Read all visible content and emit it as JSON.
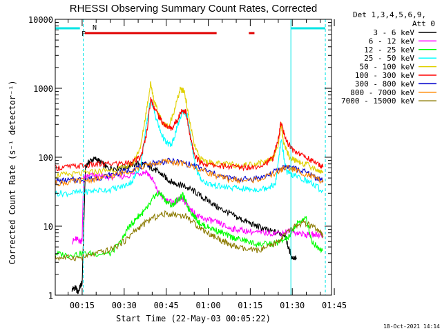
{
  "chart_data": {
    "type": "line",
    "title": "RHESSI Observing Summary Count Rates, Corrected",
    "xlabel": "Start Time (22-May-03 00:05:22)",
    "ylabel": "Corrected Count Rate (s⁻¹ detector⁻¹)",
    "y_scale": "log",
    "ylim": [
      1,
      10000
    ],
    "xlim_minutes": [
      5.4,
      104
    ],
    "x_ticks": [
      "00:15",
      "00:30",
      "00:45",
      "01:00",
      "01:15",
      "01:30",
      "01:45"
    ],
    "y_ticks": [
      "1",
      "10",
      "100",
      "1000",
      "10000"
    ],
    "grid": false,
    "legend_placement": "right",
    "legend_header": [
      "Det 1,3,4,5,6,9,",
      "Att 0"
    ],
    "flag_labels": {
      "night": "N",
      "flare": "F"
    },
    "night_segments": [
      [
        5.4,
        14.2
      ],
      [
        89.5,
        101.8
      ]
    ],
    "night_markers": [
      5.4,
      15.4,
      89.5,
      101.8
    ],
    "flare_segments": [
      [
        16.0,
        63.0
      ],
      [
        74.5,
        76.5
      ]
    ],
    "colors": {
      "background": "#ffffff",
      "axes": "#000000",
      "night": "#00e5e5",
      "flare": "#e00000"
    },
    "series": [
      {
        "name": "3 - 6 keV",
        "color": "#000000",
        "x": [
          11.4,
          12.5,
          13.5,
          14.5,
          15.0,
          16.2,
          18,
          20,
          22,
          24,
          27,
          30,
          33,
          36,
          38,
          40,
          42,
          44,
          46,
          48,
          50,
          52,
          55,
          58,
          61,
          64,
          67,
          70,
          73,
          76,
          79,
          82,
          85,
          87.5,
          88.5,
          90,
          91.5
        ],
        "y": [
          1.2,
          1.3,
          1.1,
          1.4,
          1.5,
          75,
          90,
          95,
          82,
          70,
          70,
          72,
          78,
          82,
          76,
          70,
          62,
          54,
          46,
          42,
          40,
          37,
          32,
          26,
          22,
          18,
          16,
          13.5,
          12,
          10.5,
          9.5,
          8.5,
          8,
          7.5,
          5,
          3.5,
          3.5
        ]
      },
      {
        "name": "6 - 12 keV",
        "color": "#ff00ff",
        "x": [
          11.4,
          13,
          14.5,
          15.0,
          15.5,
          18,
          21,
          25,
          30,
          35,
          38,
          40,
          42,
          44,
          46,
          48,
          50,
          52,
          54,
          56,
          58,
          61,
          64,
          67,
          70,
          74,
          78,
          82,
          86,
          89,
          92,
          95,
          98,
          101
        ],
        "y": [
          6,
          6.5,
          6,
          6.5,
          50,
          55,
          52,
          52,
          53,
          58,
          62,
          48,
          32,
          25,
          23,
          22,
          25,
          22,
          17,
          14,
          13,
          12,
          11,
          9.5,
          9,
          8.5,
          8,
          8,
          8,
          8.5,
          8,
          7.5,
          7.5,
          7.5
        ]
      },
      {
        "name": "12 - 25 keV",
        "color": "#00ff00",
        "x": [
          5.4,
          10,
          15,
          20,
          25,
          29,
          31,
          33,
          35,
          37,
          39,
          41,
          43,
          45,
          47,
          49,
          51,
          53,
          55,
          57,
          59,
          62,
          65,
          68,
          71,
          74,
          77,
          80,
          83,
          86,
          89,
          91,
          93,
          95,
          97,
          99,
          101
        ],
        "y": [
          4,
          3.8,
          4,
          4,
          4,
          6,
          9,
          11,
          14,
          16,
          20,
          28,
          30,
          23,
          20,
          24,
          28,
          18,
          14,
          11,
          10,
          9,
          8,
          7,
          6.5,
          6,
          5.5,
          5.5,
          5.5,
          6,
          7,
          10,
          12,
          13,
          6,
          5,
          4.5
        ]
      },
      {
        "name": "25 - 50 keV",
        "color": "#00ffff",
        "x": [
          5.4,
          10,
          15,
          20,
          25,
          30,
          33,
          36,
          38,
          39.5,
          41,
          43,
          45,
          47,
          49,
          51,
          52.5,
          54,
          56,
          58,
          61,
          64,
          68,
          72,
          76,
          80,
          82,
          84,
          86,
          88,
          90,
          93,
          97,
          101
        ],
        "y": [
          30,
          30,
          31,
          33,
          34,
          38,
          45,
          80,
          300,
          700,
          420,
          230,
          160,
          150,
          280,
          480,
          400,
          160,
          60,
          45,
          40,
          38,
          36,
          35,
          34,
          35,
          38,
          40,
          180,
          60,
          55,
          50,
          42,
          32
        ]
      },
      {
        "name": "50 - 100 keV",
        "color": "#e0d000",
        "x": [
          5.4,
          10,
          15,
          20,
          25,
          30,
          33,
          36,
          38,
          39.5,
          40.5,
          42,
          44,
          46,
          48,
          50,
          51.5,
          53,
          55,
          57,
          60,
          64,
          68,
          72,
          76,
          80,
          83,
          85,
          86,
          87,
          89,
          91,
          93,
          96,
          99,
          101
        ],
        "y": [
          55,
          56,
          58,
          62,
          65,
          70,
          80,
          150,
          500,
          1200,
          700,
          450,
          300,
          280,
          500,
          950,
          900,
          400,
          150,
          95,
          85,
          80,
          78,
          76,
          80,
          85,
          100,
          150,
          300,
          150,
          100,
          90,
          85,
          75,
          65,
          60
        ]
      },
      {
        "name": "100 - 300 keV",
        "color": "#ff0000",
        "x": [
          5.4,
          10,
          15,
          20,
          25,
          30,
          33,
          36,
          38,
          39.5,
          41,
          43,
          45,
          47,
          49,
          50.5,
          52,
          53.5,
          55,
          57,
          60,
          64,
          68,
          72,
          76,
          80,
          83,
          85,
          86,
          87.5,
          90,
          93,
          96,
          99,
          101
        ],
        "y": [
          70,
          72,
          75,
          78,
          80,
          82,
          85,
          100,
          220,
          700,
          500,
          350,
          280,
          260,
          350,
          480,
          460,
          200,
          110,
          85,
          78,
          75,
          73,
          72,
          72,
          80,
          95,
          180,
          330,
          180,
          130,
          110,
          95,
          80,
          72
        ]
      },
      {
        "name": "300 - 800 keV",
        "color": "#0000cc",
        "x": [
          5.4,
          10,
          15,
          20,
          25,
          30,
          35,
          40,
          45,
          50,
          55,
          60,
          65,
          70,
          75,
          80,
          85,
          88,
          91,
          95,
          98,
          101
        ],
        "y": [
          45,
          46,
          48,
          50,
          55,
          62,
          72,
          82,
          88,
          85,
          75,
          62,
          52,
          48,
          48,
          52,
          65,
          75,
          68,
          60,
          52,
          46
        ]
      },
      {
        "name": "800 - 7000 keV",
        "color": "#ff8800",
        "x": [
          5.4,
          10,
          15,
          20,
          25,
          30,
          35,
          40,
          45,
          50,
          55,
          60,
          65,
          70,
          75,
          80,
          85,
          88,
          91,
          95,
          98,
          101
        ],
        "y": [
          42,
          43,
          46,
          48,
          53,
          60,
          70,
          80,
          86,
          82,
          72,
          60,
          50,
          46,
          46,
          50,
          62,
          72,
          65,
          57,
          50,
          44
        ]
      },
      {
        "name": "7000 - 15000 keV",
        "color": "#8b7a00",
        "x": [
          5.4,
          10,
          15,
          20,
          25,
          30,
          33,
          36,
          40,
          44,
          48,
          52,
          55,
          58,
          61,
          64,
          67,
          70,
          74,
          78,
          82,
          85,
          88,
          91,
          94,
          97,
          100,
          101
        ],
        "y": [
          3.5,
          3.5,
          3.5,
          4,
          4.5,
          6,
          8,
          10,
          13,
          15,
          15,
          14,
          11,
          9,
          7.5,
          6.5,
          5.5,
          5,
          4.5,
          4.5,
          5,
          6,
          8,
          10,
          11,
          10,
          8,
          7
        ]
      }
    ],
    "footer": "18-Oct-2021 14:14"
  }
}
